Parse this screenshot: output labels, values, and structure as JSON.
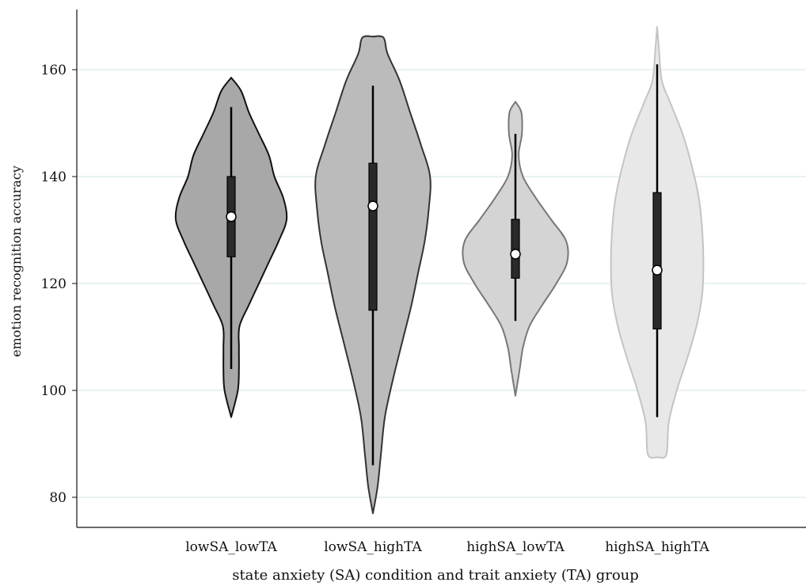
{
  "chart_data": {
    "type": "violin",
    "title": "",
    "xlabel": "state anxiety (SA) condition and trait anxiety (TA) group",
    "ylabel": "emotion recognition accuracy",
    "ylim": [
      75,
      172
    ],
    "yticks": [
      80,
      100,
      120,
      140,
      160
    ],
    "grid": "horizontal",
    "legend": "none",
    "categories": [
      "lowSA_lowTA",
      "lowSA_highTA",
      "highSA_lowTA",
      "highSA_highTA"
    ],
    "series": [
      {
        "category": "lowSA_lowTA",
        "fill": "#a8a8a8",
        "stroke": "#111111",
        "median": 132.5,
        "q1": 125,
        "q3": 140,
        "whisker_low": 104,
        "whisker_high": 153,
        "density": [
          [
            95,
            0.0
          ],
          [
            100,
            0.12
          ],
          [
            104,
            0.14
          ],
          [
            108,
            0.14
          ],
          [
            112,
            0.15
          ],
          [
            116,
            0.32
          ],
          [
            120,
            0.5
          ],
          [
            124,
            0.68
          ],
          [
            128,
            0.86
          ],
          [
            132,
            1.0
          ],
          [
            136,
            0.94
          ],
          [
            140,
            0.78
          ],
          [
            144,
            0.68
          ],
          [
            148,
            0.5
          ],
          [
            152,
            0.32
          ],
          [
            156,
            0.18
          ],
          [
            158.5,
            0.0
          ]
        ]
      },
      {
        "category": "lowSA_highTA",
        "fill": "#bbbbbb",
        "stroke": "#333333",
        "median": 134.5,
        "q1": 115,
        "q3": 142.5,
        "whisker_low": 86,
        "whisker_high": 157,
        "density": [
          [
            77,
            0.0
          ],
          [
            82,
            0.07
          ],
          [
            88,
            0.12
          ],
          [
            95,
            0.18
          ],
          [
            102,
            0.3
          ],
          [
            110,
            0.46
          ],
          [
            116,
            0.58
          ],
          [
            122,
            0.68
          ],
          [
            128,
            0.78
          ],
          [
            134,
            0.84
          ],
          [
            140,
            0.86
          ],
          [
            146,
            0.72
          ],
          [
            152,
            0.56
          ],
          [
            158,
            0.4
          ],
          [
            163,
            0.22
          ],
          [
            166,
            0.16
          ],
          [
            166.2,
            0.0
          ]
        ]
      },
      {
        "category": "highSA_lowTA",
        "fill": "#d4d4d4",
        "stroke": "#777777",
        "median": 125.5,
        "q1": 121,
        "q3": 132,
        "whisker_low": 113,
        "whisker_high": 148,
        "density": [
          [
            99,
            0.0
          ],
          [
            104,
            0.08
          ],
          [
            108,
            0.14
          ],
          [
            112,
            0.26
          ],
          [
            116,
            0.5
          ],
          [
            120,
            0.76
          ],
          [
            124,
            0.96
          ],
          [
            128,
            0.94
          ],
          [
            132,
            0.66
          ],
          [
            136,
            0.38
          ],
          [
            140,
            0.14
          ],
          [
            144,
            0.06
          ],
          [
            148,
            0.12
          ],
          [
            152,
            0.11
          ],
          [
            154,
            0.0
          ]
        ]
      },
      {
        "category": "highSA_highTA",
        "fill": "#e8e8e8",
        "stroke": "#c4c4c4",
        "median": 122.5,
        "q1": 111.5,
        "q3": 137,
        "whisker_low": 95,
        "whisker_high": 161,
        "density": [
          [
            87.5,
            0.0
          ],
          [
            88,
            0.16
          ],
          [
            94,
            0.2
          ],
          [
            100,
            0.34
          ],
          [
            106,
            0.52
          ],
          [
            112,
            0.68
          ],
          [
            118,
            0.78
          ],
          [
            124,
            0.8
          ],
          [
            130,
            0.78
          ],
          [
            136,
            0.72
          ],
          [
            142,
            0.6
          ],
          [
            148,
            0.44
          ],
          [
            154,
            0.22
          ],
          [
            158,
            0.08
          ],
          [
            164,
            0.03
          ],
          [
            168,
            0.0
          ]
        ]
      }
    ]
  }
}
